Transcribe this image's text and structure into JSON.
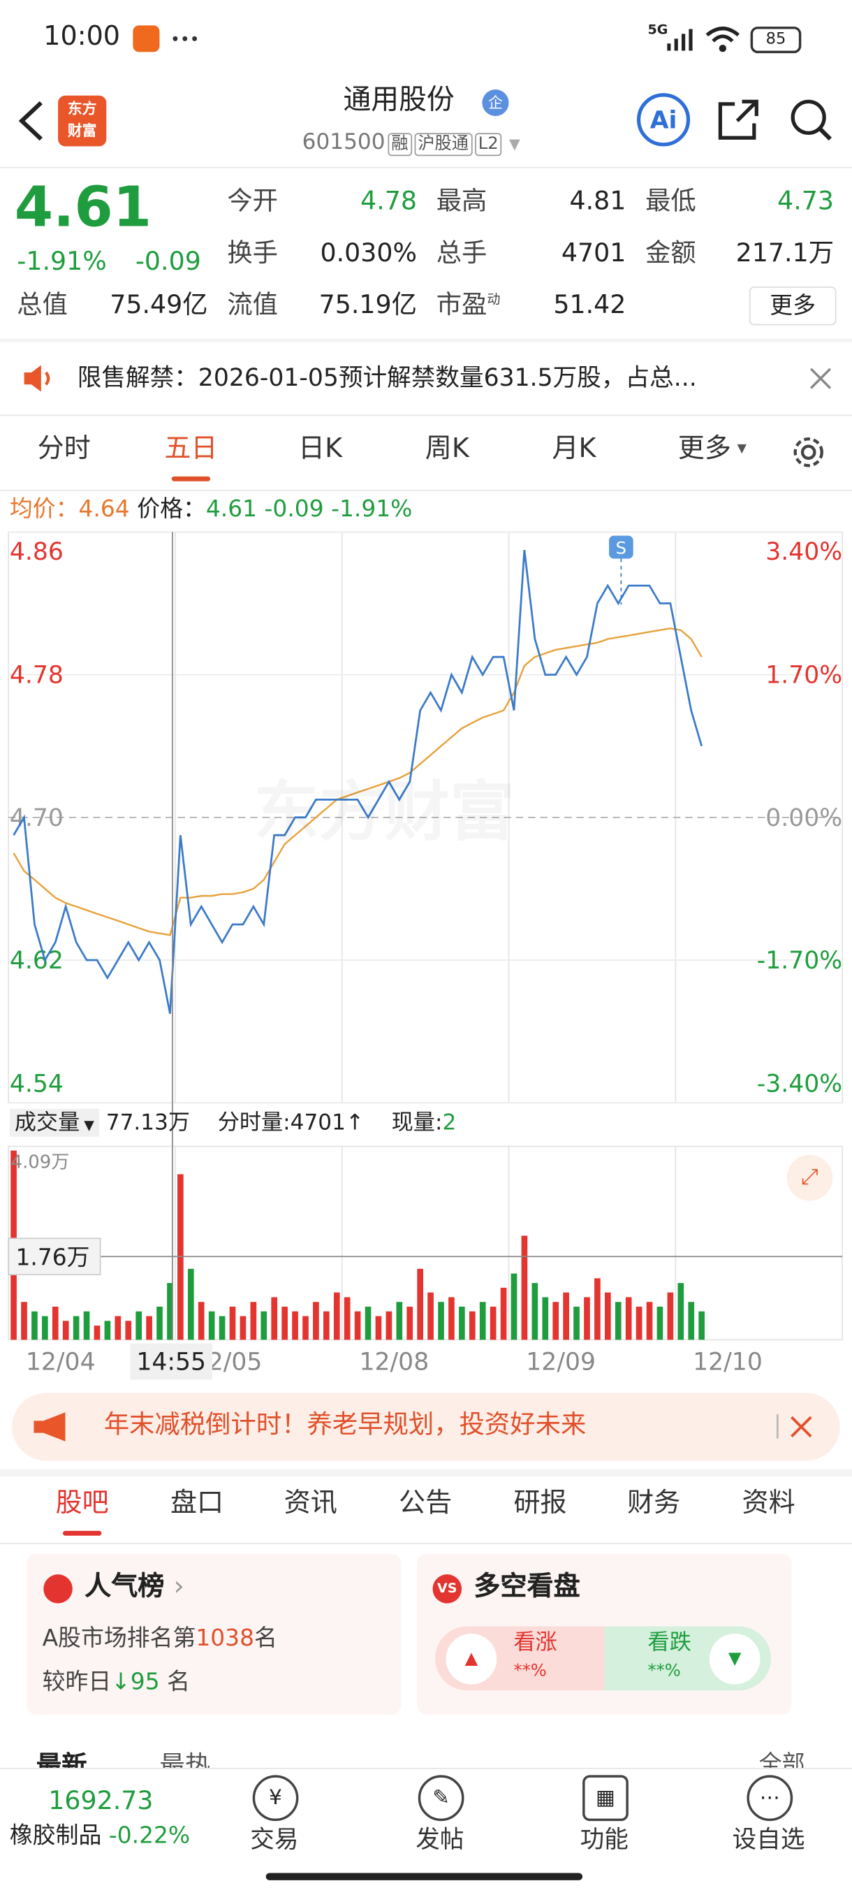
{
  "status": {
    "time": "10:00",
    "network": "5G",
    "battery": "85"
  },
  "header": {
    "logo": [
      "东方",
      "财富"
    ],
    "title": "通用股份",
    "badge": "企",
    "code": "601500",
    "tags": [
      "融",
      "沪股通",
      "L2"
    ],
    "ai": "Ai"
  },
  "quote": {
    "price": "4.61",
    "change_pct": "-1.91%",
    "change": "-0.09",
    "stats": [
      {
        "label": "今开",
        "value": "4.78"
      },
      {
        "label": "最高",
        "value": "4.81"
      },
      {
        "label": "最低",
        "value": "4.73"
      },
      {
        "label": "换手",
        "value": "0.030%"
      },
      {
        "label": "总手",
        "value": "4701"
      },
      {
        "label": "金额",
        "value": "217.1万"
      },
      {
        "label": "总值",
        "value": "75.49亿"
      },
      {
        "label": "流值",
        "value": "75.19亿"
      },
      {
        "label": "市盈",
        "sup": "动",
        "value": "51.42"
      }
    ],
    "more": "更多"
  },
  "notice": "限售解禁：2026-01-05预计解禁数量631.5万股，占总...",
  "tabs": [
    "分时",
    "五日",
    "日K",
    "周K",
    "月K",
    "更多"
  ],
  "active_tab": 1,
  "readout": {
    "avg_label": "均价：",
    "avg": "4.64",
    "price_label": "价格：",
    "price": "4.61",
    "change": "-0.09",
    "change_pct": "-1.91%"
  },
  "chart_data": [
    {
      "type": "line",
      "ylim": [
        4.54,
        4.86
      ],
      "yticks": [
        4.86,
        4.78,
        {
          "value": 4.7,
          "label": "4.70"
        },
        4.62,
        4.54
      ],
      "y2lim": [
        -3.4,
        3.4
      ],
      "y2ticks": [
        {
          "value": 3.4,
          "label": "3.40%"
        },
        {
          "value": 1.7,
          "label": "1.70%"
        },
        {
          "value": 0,
          "label": "0.00%"
        },
        {
          "value": -1.7,
          "label": "-1.70%"
        },
        {
          "value": -3.4,
          "label": "-3.40%"
        }
      ],
      "grid": true,
      "marker": "S",
      "series": [
        {
          "name": "价格",
          "color": "#3b7bc8",
          "values": [
            4.69,
            4.7,
            4.64,
            4.62,
            4.63,
            4.65,
            4.63,
            4.62,
            4.62,
            4.61,
            4.62,
            4.63,
            4.62,
            4.63,
            4.62,
            4.59,
            4.69,
            4.64,
            4.65,
            4.64,
            4.63,
            4.64,
            4.64,
            4.65,
            4.64,
            4.69,
            4.69,
            4.7,
            4.7,
            4.71,
            4.71,
            4.71,
            4.71,
            4.71,
            4.7,
            4.71,
            4.72,
            4.71,
            4.72,
            4.76,
            4.77,
            4.76,
            4.78,
            4.77,
            4.79,
            4.78,
            4.79,
            4.79,
            4.76,
            4.85,
            4.8,
            4.78,
            4.78,
            4.79,
            4.78,
            4.79,
            4.82,
            4.83,
            4.82,
            4.83,
            4.83,
            4.83,
            4.82,
            4.82,
            4.79,
            4.76,
            4.74
          ]
        },
        {
          "name": "均价",
          "color": "#e6a23c",
          "values": [
            4.68,
            4.67,
            4.665,
            4.66,
            4.655,
            4.652,
            4.65,
            4.648,
            4.646,
            4.644,
            4.642,
            4.64,
            4.638,
            4.636,
            4.635,
            4.634,
            4.655,
            4.655,
            4.656,
            4.656,
            4.657,
            4.657,
            4.658,
            4.66,
            4.665,
            4.675,
            4.685,
            4.69,
            4.695,
            4.7,
            4.705,
            4.71,
            4.712,
            4.714,
            4.716,
            4.718,
            4.72,
            4.722,
            4.725,
            4.73,
            4.735,
            4.74,
            4.745,
            4.75,
            4.753,
            4.756,
            4.758,
            4.76,
            4.77,
            4.785,
            4.79,
            4.792,
            4.794,
            4.795,
            4.796,
            4.797,
            4.798,
            4.8,
            4.801,
            4.802,
            4.803,
            4.804,
            4.805,
            4.806,
            4.805,
            4.8,
            4.79
          ]
        }
      ]
    },
    {
      "type": "bar",
      "title": "成交量",
      "total": "77.13万",
      "tick_volume_label": "分时量:",
      "tick_volume": "4701↑",
      "current_label": "现量:",
      "current": "2",
      "ylim": [
        0,
        4.09
      ],
      "yticks": [
        {
          "value": 4.09,
          "label": "4.09万"
        }
      ],
      "cursor": {
        "value": 1.76,
        "label": "1.76万"
      },
      "cursor_time": "14:55",
      "day_labels": [
        "12/04",
        "12/05",
        "12/08",
        "12/09",
        "12/10"
      ],
      "up_color": "#e3342f",
      "down_color": "#1f9d3e",
      "values": [
        4.0,
        0.8,
        0.6,
        0.5,
        0.7,
        0.4,
        0.5,
        0.6,
        0.3,
        0.4,
        0.5,
        0.4,
        0.6,
        0.5,
        0.7,
        1.2,
        3.5,
        1.5,
        0.8,
        0.6,
        0.5,
        0.7,
        0.5,
        0.8,
        0.6,
        0.9,
        0.7,
        0.6,
        0.5,
        0.8,
        0.6,
        1.0,
        0.9,
        0.6,
        0.7,
        0.5,
        0.6,
        0.8,
        0.7,
        1.5,
        1.0,
        0.8,
        0.9,
        0.7,
        0.6,
        0.8,
        0.7,
        1.1,
        1.4,
        2.2,
        1.2,
        0.9,
        0.8,
        1.0,
        0.7,
        0.9,
        1.3,
        1.0,
        0.8,
        0.9,
        0.7,
        0.8,
        0.7,
        1.0,
        1.2,
        0.8,
        0.6
      ]
    }
  ],
  "banner": "年末减税倒计时！养老早规划，投资好未来",
  "section_tabs": [
    "股吧",
    "盘口",
    "资讯",
    "公告",
    "研报",
    "财务",
    "资料"
  ],
  "popularity": {
    "title": "人气榜",
    "rank_prefix": "A股市场排名第",
    "rank": "1038",
    "rank_suffix": "名",
    "change_prefix": "较昨日",
    "change": "95",
    "change_suffix": " 名"
  },
  "sentiment": {
    "title": "多空看盘",
    "bull": "看涨",
    "bull_value": "**%",
    "bear": "看跌",
    "bear_value": "**%"
  },
  "feed_tabs": [
    "最新",
    "最热",
    "全部"
  ],
  "bottom": {
    "index_value": "1692.73",
    "index_name": "橡胶制品",
    "index_change": "-0.22%",
    "actions": [
      "交易",
      "发帖",
      "功能",
      "设自选"
    ]
  }
}
